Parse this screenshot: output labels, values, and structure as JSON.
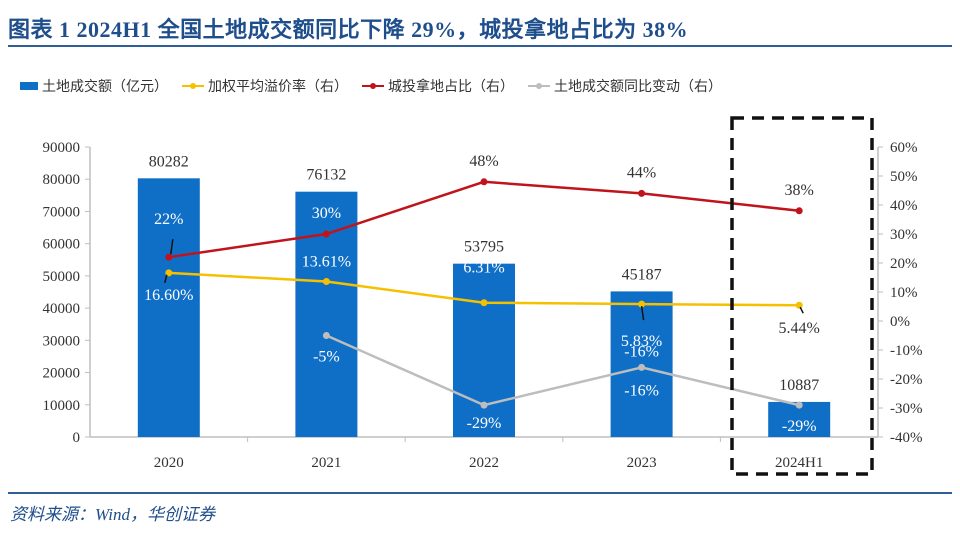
{
  "title": "图表 1   2024H1 全国土地成交额同比下降 29%，城投拿地占比为 38%",
  "source": "资料来源：Wind，华创证券",
  "legend": [
    {
      "label": "土地成交额（亿元）",
      "color": "#0f6fc6",
      "kind": "bar"
    },
    {
      "label": "加权平均溢价率（右）",
      "color": "#f5c000",
      "kind": "line"
    },
    {
      "label": "城投拿地占比（右）",
      "color": "#c0141c",
      "kind": "line"
    },
    {
      "label": "土地成交额同比变动（右）",
      "color": "#bdbdbd",
      "kind": "line"
    }
  ],
  "chart_data": {
    "type": "bar",
    "title": "2024H1 全国土地成交额同比下降 29%，城投拿地占比为 38%",
    "categories": [
      "2020",
      "2021",
      "2022",
      "2023",
      "2024H1"
    ],
    "bar_series": {
      "name": "土地成交额（亿元）",
      "values": [
        80282,
        76132,
        53795,
        45187,
        10887
      ],
      "labels": [
        "80282",
        "76132",
        "53795",
        "45187",
        "10887"
      ],
      "color": "#0f6fc6"
    },
    "line_series": [
      {
        "name": "加权平均溢价率（右）",
        "values": [
          16.6,
          13.61,
          6.31,
          5.83,
          5.44
        ],
        "labels": [
          "16.60%",
          "13.61%",
          "6.31%",
          "5.83%",
          "5.44%"
        ],
        "color": "#f5c000"
      },
      {
        "name": "城投拿地占比（右）",
        "values": [
          22,
          30,
          48,
          44,
          38
        ],
        "labels": [
          "22%",
          "30%",
          "48%",
          "44%",
          "38%"
        ],
        "color": "#c0141c"
      },
      {
        "name": "土地成交额同比变动（右）",
        "values": [
          null,
          -5,
          -29,
          -16,
          -29
        ],
        "labels": [
          "",
          "-5%",
          "-29%",
          "-16%",
          "-29%"
        ],
        "color": "#bdbdbd"
      }
    ],
    "y_left": {
      "min": 0,
      "max": 90000,
      "step": 10000,
      "ticks": [
        "0",
        "10000",
        "20000",
        "30000",
        "40000",
        "50000",
        "60000",
        "70000",
        "80000",
        "90000"
      ]
    },
    "y_right": {
      "min": -40,
      "max": 60,
      "step": 10,
      "ticks": [
        "-40%",
        "-30%",
        "-20%",
        "-10%",
        "0%",
        "10%",
        "20%",
        "30%",
        "40%",
        "50%",
        "60%"
      ]
    },
    "xlabel": "",
    "ylabel": "",
    "grid": false,
    "legend_position": "top",
    "highlight": "2024H1"
  }
}
